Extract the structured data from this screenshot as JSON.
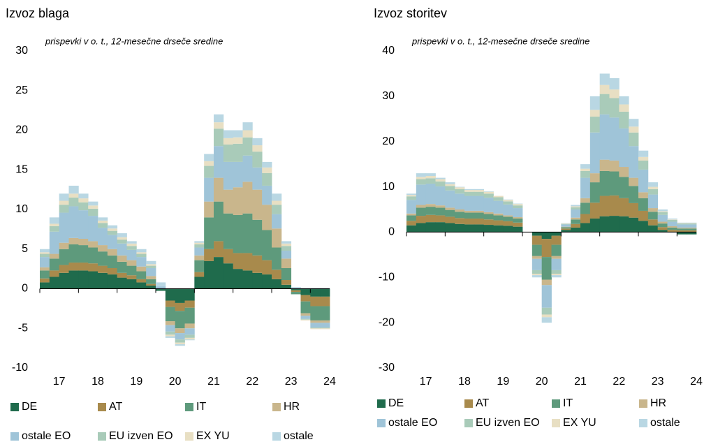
{
  "chart_data": [
    {
      "type": "stacked_bar",
      "title": "Izvoz blaga",
      "subtitle": "prispevki v o. t., 12-mesečne drseče sredine",
      "categories": [
        null,
        "17",
        null,
        null,
        null,
        "18",
        null,
        null,
        null,
        "19",
        null,
        null,
        null,
        "20",
        null,
        null,
        null,
        "21",
        null,
        null,
        null,
        "22",
        null,
        null,
        null,
        "23",
        null,
        null,
        null,
        "24"
      ],
      "ylim": [
        -10,
        30
      ],
      "yticks": [
        -10,
        -5,
        0,
        5,
        10,
        15,
        20,
        25,
        30
      ],
      "series": [
        {
          "name": "DE",
          "color": "#1f6b4c",
          "values": [
            0.8,
            1.5,
            2,
            2.3,
            2.3,
            2.2,
            2,
            1.8,
            1.4,
            1.2,
            0.8,
            0.4,
            -0.2,
            -1.5,
            -1.8,
            -1.5,
            1.5,
            3.5,
            4,
            3.2,
            2.5,
            2.3,
            2,
            1.8,
            1.2,
            0.5,
            -0.2,
            -0.8,
            -1,
            -1
          ]
        },
        {
          "name": "AT",
          "color": "#a88a4c",
          "values": [
            0.5,
            0.8,
            1,
            1,
            1,
            1,
            0.9,
            0.8,
            0.6,
            0.5,
            0.4,
            0.2,
            0,
            -0.8,
            -1,
            -0.9,
            0.6,
            1.5,
            2,
            1.8,
            2,
            2.2,
            2.2,
            1.8,
            1.2,
            0.6,
            -0.2,
            -0.8,
            -1.2,
            -1.2
          ]
        },
        {
          "name": "IT",
          "color": "#5e9a7c",
          "values": [
            1,
            1.5,
            2,
            2.3,
            2.2,
            2,
            1.8,
            1.6,
            1.4,
            1.2,
            1,
            0.6,
            -0.1,
            -1.8,
            -2.2,
            -2,
            1.5,
            4,
            5,
            4.5,
            4.8,
            5,
            4.5,
            3.8,
            2.8,
            1.5,
            -0.3,
            -1.5,
            -1.8,
            -1.8
          ]
        },
        {
          "name": "HR",
          "color": "#c9b68c",
          "values": [
            0.4,
            0.6,
            0.8,
            0.8,
            0.8,
            0.8,
            0.8,
            0.8,
            0.8,
            0.7,
            0.6,
            0.4,
            0,
            -0.5,
            -0.6,
            -0.6,
            0.6,
            2,
            3,
            3,
            3.5,
            4,
            3.8,
            3.2,
            2.4,
            1.2,
            0,
            -0.3,
            -0.3,
            -0.3
          ]
        },
        {
          "name": "ostale EO",
          "color": "#9fc4d8",
          "values": [
            1.3,
            2.8,
            3.8,
            4,
            3.6,
            3.2,
            2.2,
            1.8,
            1.5,
            1.3,
            1.2,
            1,
            0.3,
            -0.8,
            -0.8,
            -0.8,
            1,
            3,
            4,
            3.5,
            3.2,
            3.3,
            2.8,
            2.4,
            1.8,
            1,
            0,
            -0.4,
            -0.6,
            -0.6
          ]
        },
        {
          "name": "EU izven EO",
          "color": "#a9cbb9",
          "values": [
            0.4,
            0.7,
            1,
            1.1,
            1,
            0.9,
            0.6,
            0.5,
            0.5,
            0.5,
            0.4,
            0.3,
            0,
            -0.4,
            -0.4,
            -0.4,
            0.4,
            1.5,
            2.2,
            2.2,
            2.3,
            2.3,
            2,
            1.6,
            1.2,
            0.6,
            0,
            -0.1,
            -0.1,
            -0.1
          ]
        },
        {
          "name": "EX YU",
          "color": "#e8dfc3",
          "values": [
            0.2,
            0.3,
            0.5,
            0.5,
            0.5,
            0.4,
            0.3,
            0.3,
            0.3,
            0.3,
            0.2,
            0.2,
            0,
            -0.2,
            -0.2,
            -0.2,
            0.2,
            0.6,
            0.8,
            0.8,
            0.8,
            0.9,
            0.8,
            0.7,
            0.5,
            0.3,
            0,
            -0.1,
            -0.1,
            -0.1
          ]
        },
        {
          "name": "ostale",
          "color": "#b9d7e3",
          "values": [
            0.4,
            0.8,
            0.9,
            1,
            0.6,
            0.5,
            0.4,
            0.4,
            0.5,
            0.3,
            0.4,
            0.4,
            0.5,
            -0.2,
            -0.2,
            -0.1,
            0.2,
            0.9,
            1,
            1,
            0.9,
            1,
            0.9,
            0.7,
            0.9,
            0.3,
            0.2,
            0.1,
            0.1,
            0.1
          ]
        }
      ]
    },
    {
      "type": "stacked_bar",
      "title": "Izvoz storitev",
      "subtitle": "prispevki v o. t., 12-mesečne drseče sredine",
      "categories": [
        null,
        "17",
        null,
        null,
        null,
        "18",
        null,
        null,
        null,
        "19",
        null,
        null,
        null,
        "20",
        null,
        null,
        null,
        "21",
        null,
        null,
        null,
        "22",
        null,
        null,
        null,
        "23",
        null,
        null,
        null,
        "24"
      ],
      "ylim": [
        -30,
        40
      ],
      "yticks": [
        -30,
        -20,
        -10,
        0,
        10,
        20,
        30,
        40
      ],
      "series": [
        {
          "name": "DE",
          "color": "#1f6b4c",
          "values": [
            1.5,
            2,
            2.2,
            2.2,
            2,
            1.8,
            1.7,
            1.7,
            1.6,
            1.5,
            1.4,
            1.2,
            0,
            -0.8,
            -1.5,
            -0.8,
            0.5,
            1,
            2,
            3,
            3.5,
            3.6,
            3.5,
            3.2,
            2.5,
            1.5,
            0.5,
            0,
            -0.5,
            -0.5
          ]
        },
        {
          "name": "AT",
          "color": "#a88a4c",
          "values": [
            1,
            1.6,
            1.6,
            1.5,
            1.4,
            1.3,
            1.3,
            1.3,
            1.2,
            1.1,
            1,
            0.9,
            0,
            -2,
            -4,
            -2,
            0.3,
            0.8,
            2,
            3.5,
            4.5,
            4.5,
            4,
            3.2,
            2.2,
            1.3,
            0.6,
            0.5,
            0.4,
            0.4
          ]
        },
        {
          "name": "IT",
          "color": "#5e9a7c",
          "values": [
            1.2,
            1.8,
            1.8,
            1.7,
            1.5,
            1.4,
            1.3,
            1.3,
            1.2,
            1.1,
            1,
            0.9,
            0,
            -2.5,
            -5,
            -2.5,
            0.3,
            1,
            2.5,
            4.5,
            5.5,
            5.3,
            4.7,
            3.8,
            2.8,
            1.7,
            0.8,
            0.5,
            0.4,
            0.4
          ]
        },
        {
          "name": "HR",
          "color": "#c9b68c",
          "values": [
            0.4,
            0.6,
            0.6,
            0.5,
            0.5,
            0.5,
            0.4,
            0.4,
            0.4,
            0.4,
            0.3,
            0.3,
            0,
            -0.6,
            -1.2,
            -0.6,
            0.1,
            0.4,
            1,
            2,
            2.5,
            2.4,
            2.2,
            1.8,
            1.3,
            0.8,
            0.4,
            0.3,
            0.2,
            0.2
          ]
        },
        {
          "name": "ostale EO",
          "color": "#9fc4d8",
          "values": [
            3,
            4.5,
            4.5,
            4.2,
            3.8,
            3.5,
            3.3,
            3.3,
            3.2,
            2.8,
            2.4,
            2,
            0,
            -2.5,
            -5,
            -2.5,
            0.5,
            1.8,
            4.5,
            9,
            10,
            9.5,
            8.5,
            7,
            5,
            3,
            1.5,
            1,
            0.7,
            0.7
          ]
        },
        {
          "name": "EU izven EO",
          "color": "#a9cbb9",
          "values": [
            0.8,
            1.2,
            1.2,
            1.1,
            1,
            1,
            0.9,
            0.9,
            0.9,
            0.8,
            0.7,
            0.6,
            0,
            -0.8,
            -1.5,
            -0.8,
            0.1,
            0.5,
            1.5,
            3.5,
            4.5,
            4.3,
            3.7,
            3,
            2,
            1.2,
            0.6,
            0.4,
            0.2,
            0.2
          ]
        },
        {
          "name": "EX YU",
          "color": "#e8dfc3",
          "values": [
            0.3,
            0.5,
            0.5,
            0.5,
            0.4,
            0.4,
            0.4,
            0.4,
            0.4,
            0.3,
            0.3,
            0.3,
            0,
            -0.3,
            -0.6,
            -0.3,
            0.1,
            0.2,
            0.5,
            1.5,
            2,
            1.9,
            1.6,
            1.3,
            0.8,
            0.5,
            0.2,
            0.1,
            0.1,
            0.1
          ]
        },
        {
          "name": "ostale",
          "color": "#b9d7e3",
          "values": [
            0.3,
            0.8,
            0.6,
            0.3,
            0.4,
            0.1,
            0.2,
            0.2,
            0.1,
            0,
            0.1,
            0.1,
            0,
            -0.5,
            -1.2,
            -0.5,
            0.1,
            0.3,
            1,
            3,
            2.5,
            2.5,
            1.8,
            1.7,
            1.4,
            1,
            0.4,
            0.2,
            0.1,
            0.1
          ]
        }
      ]
    }
  ]
}
